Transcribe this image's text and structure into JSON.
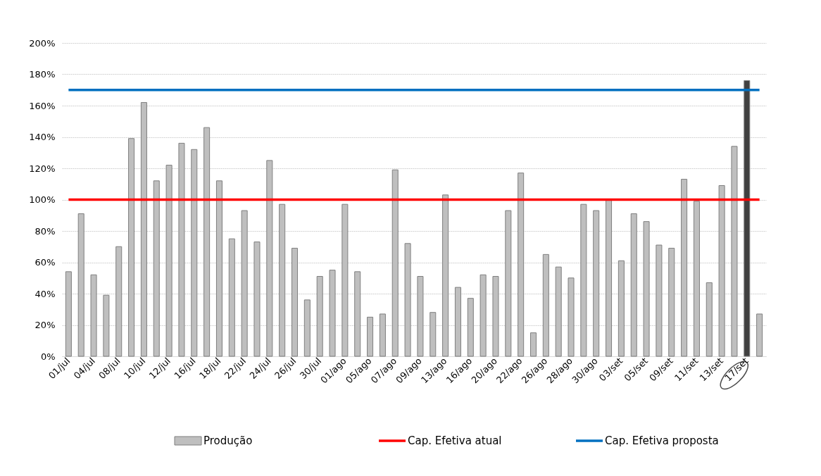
{
  "chart_data": {
    "type": "bar",
    "categories": [
      "01/jul",
      null,
      "04/jul",
      null,
      "08/jul",
      null,
      "10/jul",
      null,
      "12/jul",
      null,
      "16/jul",
      null,
      "18/jul",
      null,
      "22/jul",
      null,
      "24/jul",
      null,
      "26/jul",
      null,
      "30/jul",
      null,
      "01/ago",
      null,
      "05/ago",
      null,
      "07/ago",
      null,
      "09/ago",
      null,
      "13/ago",
      null,
      "16/ago",
      null,
      "20/ago",
      null,
      "22/ago",
      null,
      "26/ago",
      null,
      "28/ago",
      null,
      "30/ago",
      null,
      "03/set",
      null,
      "05/set",
      null,
      "09/set",
      null,
      "11/set",
      null,
      "13/set",
      null,
      "17/set",
      null
    ],
    "series": [
      {
        "name": "Produção",
        "color": "#bfbfbf",
        "colors": [
          "#bfbfbf",
          "#bfbfbf",
          "#bfbfbf",
          "#bfbfbf",
          "#bfbfbf",
          "#bfbfbf",
          "#bfbfbf",
          "#bfbfbf",
          "#bfbfbf",
          "#bfbfbf",
          "#bfbfbf",
          "#bfbfbf",
          "#bfbfbf",
          "#bfbfbf",
          "#bfbfbf",
          "#bfbfbf",
          "#bfbfbf",
          "#bfbfbf",
          "#bfbfbf",
          "#bfbfbf",
          "#bfbfbf",
          "#bfbfbf",
          "#bfbfbf",
          "#bfbfbf",
          "#bfbfbf",
          "#bfbfbf",
          "#bfbfbf",
          "#bfbfbf",
          "#bfbfbf",
          "#bfbfbf",
          "#bfbfbf",
          "#bfbfbf",
          "#bfbfbf",
          "#bfbfbf",
          "#bfbfbf",
          "#bfbfbf",
          "#bfbfbf",
          "#bfbfbf",
          "#bfbfbf",
          "#bfbfbf",
          "#bfbfbf",
          "#bfbfbf",
          "#bfbfbf",
          "#bfbfbf",
          "#bfbfbf",
          "#bfbfbf",
          "#bfbfbf",
          "#bfbfbf",
          "#bfbfbf",
          "#bfbfbf",
          "#bfbfbf",
          "#bfbfbf",
          "#bfbfbf",
          "#bfbfbf",
          "#404040",
          "#bfbfbf"
        ],
        "values": [
          54,
          91,
          52,
          39,
          70,
          139,
          162,
          112,
          122,
          136,
          132,
          146,
          112,
          75,
          93,
          73,
          125,
          97,
          69,
          36,
          51,
          55,
          97,
          54,
          25,
          27,
          119,
          72,
          51,
          28,
          103,
          44,
          37,
          52,
          51,
          93,
          117,
          15,
          65,
          57,
          50,
          97,
          93,
          100,
          61,
          91,
          86,
          71,
          69,
          113,
          99,
          47,
          109,
          134,
          176,
          27
        ]
      }
    ],
    "ylim": [
      0,
      200
    ],
    "yticks": [
      {
        "value": 0,
        "label": "0%"
      },
      {
        "value": 20,
        "label": "20%"
      },
      {
        "value": 40,
        "label": "40%"
      },
      {
        "value": 60,
        "label": "60%"
      },
      {
        "value": 80,
        "label": "80%"
      },
      {
        "value": 100,
        "label": "100%"
      },
      {
        "value": 120,
        "label": "120%"
      },
      {
        "value": 140,
        "label": "140%"
      },
      {
        "value": 160,
        "label": "160%"
      },
      {
        "value": 180,
        "label": "180%"
      },
      {
        "value": 200,
        "label": "200%"
      }
    ],
    "ref_lines": [
      {
        "axis": "y",
        "value": 100,
        "label": "Cap. Efetiva atual",
        "color": "#ff0000"
      },
      {
        "axis": "y",
        "value": 170,
        "label": "Cap. Efetiva proposta",
        "color": "#0070c0"
      }
    ],
    "grid": "y",
    "legend": "bottom"
  }
}
